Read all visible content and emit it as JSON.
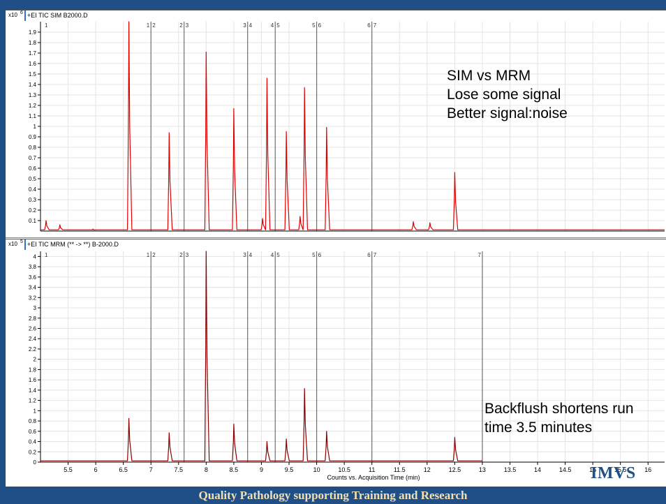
{
  "chart_data": [
    {
      "type": "line",
      "title": "+EI TIC SIM B2000.D",
      "scale_label": "x10",
      "scale_exponent": "6",
      "ylim": [
        0,
        2.0
      ],
      "xlim": [
        5.0,
        16.3
      ],
      "y_ticks": [
        0.1,
        0.2,
        0.3,
        0.4,
        0.5,
        0.6,
        0.7,
        0.8,
        0.9,
        1,
        1.1,
        1.2,
        1.3,
        1.4,
        1.5,
        1.6,
        1.7,
        1.8,
        1.9
      ],
      "segment_markers": [
        {
          "x": 5.05,
          "labels": [
            "1"
          ]
        },
        {
          "x": 7.0,
          "labels": [
            "1",
            "2"
          ]
        },
        {
          "x": 7.6,
          "labels": [
            "2",
            "3"
          ]
        },
        {
          "x": 8.75,
          "labels": [
            "3",
            "4"
          ]
        },
        {
          "x": 9.25,
          "labels": [
            "4",
            "5"
          ]
        },
        {
          "x": 10.0,
          "labels": [
            "5",
            "6"
          ]
        },
        {
          "x": 11.0,
          "labels": [
            "6",
            "7"
          ]
        }
      ],
      "peaks": [
        {
          "x": 5.1,
          "y": 0.1
        },
        {
          "x": 5.35,
          "y": 0.06
        },
        {
          "x": 5.95,
          "y": 0.02
        },
        {
          "x": 6.6,
          "y": 2.0
        },
        {
          "x": 7.33,
          "y": 0.94
        },
        {
          "x": 8.0,
          "y": 1.71
        },
        {
          "x": 8.5,
          "y": 1.17
        },
        {
          "x": 9.02,
          "y": 0.12
        },
        {
          "x": 9.1,
          "y": 1.46
        },
        {
          "x": 9.45,
          "y": 0.95
        },
        {
          "x": 9.7,
          "y": 0.14
        },
        {
          "x": 9.78,
          "y": 1.37
        },
        {
          "x": 10.18,
          "y": 0.99
        },
        {
          "x": 11.75,
          "y": 0.09
        },
        {
          "x": 12.05,
          "y": 0.08
        },
        {
          "x": 12.5,
          "y": 0.56
        }
      ]
    },
    {
      "type": "line",
      "title": "+EI TIC MRM (** -> **) B-2000.D",
      "scale_label": "x10",
      "scale_exponent": "5",
      "ylim": [
        0,
        4.1
      ],
      "xlim": [
        5.0,
        16.3
      ],
      "y_ticks": [
        0,
        0.2,
        0.4,
        0.6,
        0.8,
        1,
        1.2,
        1.4,
        1.6,
        1.8,
        2,
        2.2,
        2.4,
        2.6,
        2.8,
        3,
        3.2,
        3.4,
        3.6,
        3.8,
        4
      ],
      "x_ticks": [
        5.5,
        6,
        6.5,
        7,
        7.5,
        8,
        8.5,
        9,
        9.5,
        10,
        10.5,
        11,
        11.5,
        12,
        12.5,
        13,
        13.5,
        14,
        14.5,
        15,
        15.5,
        16
      ],
      "xlabel": "Counts vs. Acquisition Time (min)",
      "segment_markers": [
        {
          "x": 5.05,
          "labels": [
            "1"
          ]
        },
        {
          "x": 7.0,
          "labels": [
            "1",
            "2"
          ]
        },
        {
          "x": 7.6,
          "labels": [
            "2",
            "3"
          ]
        },
        {
          "x": 8.75,
          "labels": [
            "3",
            "4"
          ]
        },
        {
          "x": 9.25,
          "labels": [
            "4",
            "5"
          ]
        },
        {
          "x": 10.0,
          "labels": [
            "5",
            "6"
          ]
        },
        {
          "x": 11.0,
          "labels": [
            "6",
            "7"
          ]
        },
        {
          "x": 13.0,
          "labels": [
            "7"
          ]
        }
      ],
      "peaks": [
        {
          "x": 6.6,
          "y": 0.85
        },
        {
          "x": 7.33,
          "y": 0.57
        },
        {
          "x": 8.0,
          "y": 4.1
        },
        {
          "x": 8.5,
          "y": 0.74
        },
        {
          "x": 9.1,
          "y": 0.4
        },
        {
          "x": 9.45,
          "y": 0.45
        },
        {
          "x": 9.78,
          "y": 1.43
        },
        {
          "x": 10.18,
          "y": 0.6
        },
        {
          "x": 12.5,
          "y": 0.48
        }
      ]
    }
  ],
  "annotations": {
    "top": [
      "SIM vs MRM",
      "Lose some signal",
      "Better signal:noise"
    ],
    "bottom": [
      "Backflush shortens run",
      "time 3.5 minutes"
    ]
  },
  "logo_text": "IMVS",
  "footer_text": "Quality Pathology supporting Training and Research",
  "colors": {
    "top_trace": "#e00000",
    "bottom_trace": "#8b0000",
    "footer_bg": "#1f4f86",
    "footer_text": "#f3e0b0"
  }
}
